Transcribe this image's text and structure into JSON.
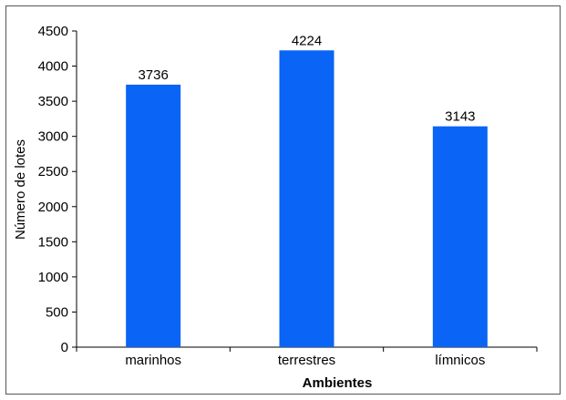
{
  "chart_data": {
    "type": "bar",
    "categories": [
      "marinhos",
      "terrestres",
      "límnicos"
    ],
    "values": [
      3736,
      4224,
      3143
    ],
    "title": "",
    "xlabel": "Ambientes",
    "ylabel": "Número de lotes",
    "ylim": [
      0,
      4500
    ],
    "yticks": [
      0,
      500,
      1000,
      1500,
      2000,
      2500,
      3000,
      3500,
      4000,
      4500
    ],
    "bar_color": "#0a64f5",
    "data_labels": true,
    "grid": false,
    "legend": "none"
  }
}
